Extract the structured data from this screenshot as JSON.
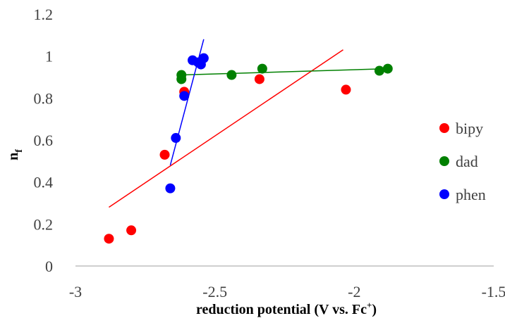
{
  "chart_data": {
    "type": "scatter",
    "xlabel": {
      "main": "reduction potential (V vs. Fc",
      "sup": "+",
      "close": ")"
    },
    "ylabel": {
      "main": "n",
      "sub": "f"
    },
    "xlim": [
      -3,
      -1.5
    ],
    "ylim": [
      0,
      1.2
    ],
    "x_ticks": [
      "-3",
      "-2.5",
      "-2",
      "-1.5"
    ],
    "y_ticks": [
      "0",
      "0.2",
      "0.4",
      "0.6",
      "0.8",
      "1",
      "1.2"
    ],
    "grid": false,
    "legend": "right",
    "series": [
      {
        "name": "bipy",
        "color": "#ff0000",
        "points": [
          [
            -2.88,
            0.13
          ],
          [
            -2.8,
            0.17
          ],
          [
            -2.68,
            0.53
          ],
          [
            -2.61,
            0.83
          ],
          [
            -2.34,
            0.89
          ],
          [
            -2.03,
            0.84
          ]
        ],
        "trendline": [
          [
            -2.88,
            0.28
          ],
          [
            -2.04,
            1.03
          ]
        ]
      },
      {
        "name": "dad",
        "color": "#008000",
        "points": [
          [
            -2.62,
            0.91
          ],
          [
            -2.62,
            0.89
          ],
          [
            -2.44,
            0.91
          ],
          [
            -2.33,
            0.94
          ],
          [
            -1.91,
            0.93
          ],
          [
            -1.88,
            0.94
          ]
        ],
        "trendline": [
          [
            -2.62,
            0.91
          ],
          [
            -1.88,
            0.94
          ]
        ]
      },
      {
        "name": "phen",
        "color": "#0000ff",
        "points": [
          [
            -2.66,
            0.37
          ],
          [
            -2.64,
            0.61
          ],
          [
            -2.61,
            0.81
          ],
          [
            -2.58,
            0.98
          ],
          [
            -2.56,
            0.97
          ],
          [
            -2.55,
            0.96
          ],
          [
            -2.54,
            0.99
          ]
        ],
        "trendline": [
          [
            -2.66,
            0.48
          ],
          [
            -2.54,
            1.08
          ]
        ]
      }
    ]
  }
}
